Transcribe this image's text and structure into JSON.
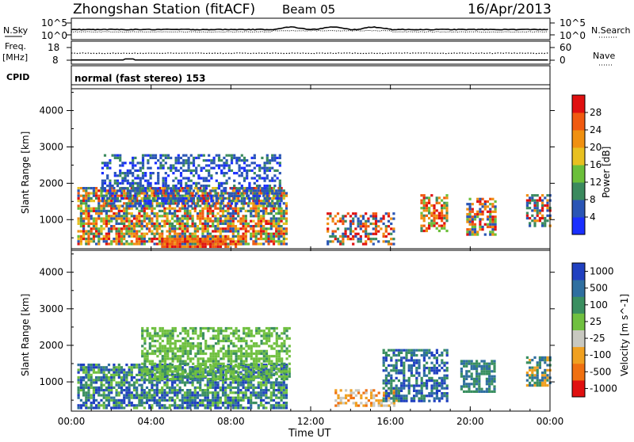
{
  "header": {
    "title": "Zhongshan Station (fitACF)",
    "beam": "Beam 05",
    "date": "16/Apr/2013"
  },
  "nsky_panel": {
    "left_label": "N.Sky",
    "right_label": "N.Search",
    "left_ticks": [
      "10^5",
      "10^0"
    ],
    "right_ticks": [
      "10^5",
      "10^0"
    ]
  },
  "freq_panel": {
    "left_label_line1": "Freq.",
    "left_label_line2": "[MHz]",
    "right_label": "Nave",
    "left_ticks": [
      "18",
      "8"
    ],
    "right_ticks": [
      "60",
      "0"
    ]
  },
  "cpid_panel": {
    "label": "CPID",
    "text": "normal (fast stereo) 153"
  },
  "colors": {
    "power_scale": [
      "#1a2fff",
      "#2a55b5",
      "#3b8a5e",
      "#6bbf3a",
      "#e8c020",
      "#f09010",
      "#f05a10",
      "#e01010"
    ],
    "velocity_scale": [
      "#2040c0",
      "#2f6fa0",
      "#3a8f60",
      "#70c040",
      "#c8c8c0",
      "#f0a020",
      "#f07010",
      "#e01010"
    ]
  },
  "chart_data": [
    {
      "type": "heatmap",
      "title": "",
      "ylabel": "Slant Range [km]",
      "xlabel": "",
      "yticks": [
        "1000",
        "2000",
        "3000",
        "4000"
      ],
      "ylim": [
        200,
        4600
      ],
      "xlim_hours": [
        0,
        24
      ],
      "colorbar": {
        "label": "Power [dB]",
        "ticks": [
          "4",
          "8",
          "12",
          "16",
          "20",
          "24",
          "28"
        ],
        "range": [
          0,
          32
        ]
      }
    },
    {
      "type": "heatmap",
      "title": "",
      "ylabel": "Slant Range [km]",
      "xlabel": "Time UT",
      "yticks": [
        "1000",
        "2000",
        "3000",
        "4000"
      ],
      "ylim": [
        200,
        4600
      ],
      "xlim_hours": [
        0,
        24
      ],
      "xticks": [
        "00:00",
        "04:00",
        "08:00",
        "12:00",
        "16:00",
        "20:00",
        "00:00"
      ],
      "colorbar": {
        "label": "Velocity [m s^-1]",
        "ticks": [
          "1000",
          "500",
          "100",
          "25",
          "-25",
          "-100",
          "-500",
          "-1000"
        ]
      }
    }
  ]
}
